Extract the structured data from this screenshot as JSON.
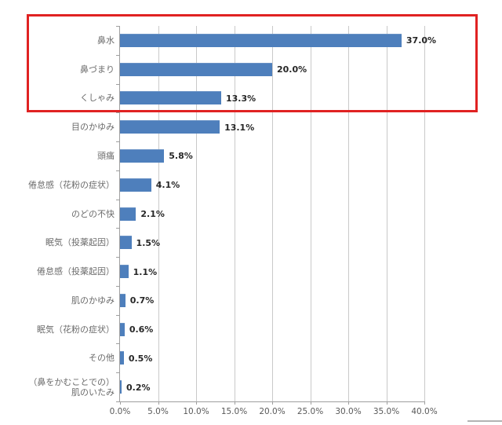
{
  "chart_data": {
    "type": "bar",
    "orientation": "horizontal",
    "title": "",
    "xlabel": "",
    "ylabel": "",
    "xlim": [
      0,
      40
    ],
    "grid": true,
    "legend": "none",
    "categories": [
      "鼻水",
      "鼻づまり",
      "くしゃみ",
      "目のかゆみ",
      "頭痛",
      "倦怠感（花粉の症状）",
      "のどの不快",
      "眠気（投薬起因）",
      "倦怠感（投薬起因）",
      "肌のかゆみ",
      "眠気（花粉の症状）",
      "その他",
      "（鼻をかむことでの）\n肌のいたみ"
    ],
    "values": [
      37.0,
      20.0,
      13.3,
      13.1,
      5.8,
      4.1,
      2.1,
      1.5,
      1.1,
      0.7,
      0.6,
      0.5,
      0.2
    ],
    "value_labels": [
      "37.0%",
      "20.0%",
      "13.3%",
      "13.1%",
      "5.8%",
      "4.1%",
      "2.1%",
      "1.5%",
      "1.1%",
      "0.7%",
      "0.6%",
      "0.5%",
      "0.2%"
    ],
    "x_tick_labels": [
      "0.0%",
      "5.0%",
      "10.0%",
      "15.0%",
      "20.0%",
      "25.0%",
      "30.0%",
      "35.0%",
      "40.0%"
    ],
    "x_tick_values": [
      0,
      5,
      10,
      15,
      20,
      25,
      30,
      35,
      40
    ],
    "colors": {
      "bar": "#4e7fbc",
      "gridline": "#c9c9c9",
      "axis": "#9f9f9f",
      "category_label": "#6b6b6b",
      "value_label": "#262626",
      "tick_label": "#595959"
    }
  },
  "annotations": {
    "highlight_box": {
      "color": "#e02222",
      "rows_highlighted": [
        "鼻水",
        "鼻づまり",
        "くしゃみ"
      ]
    }
  }
}
